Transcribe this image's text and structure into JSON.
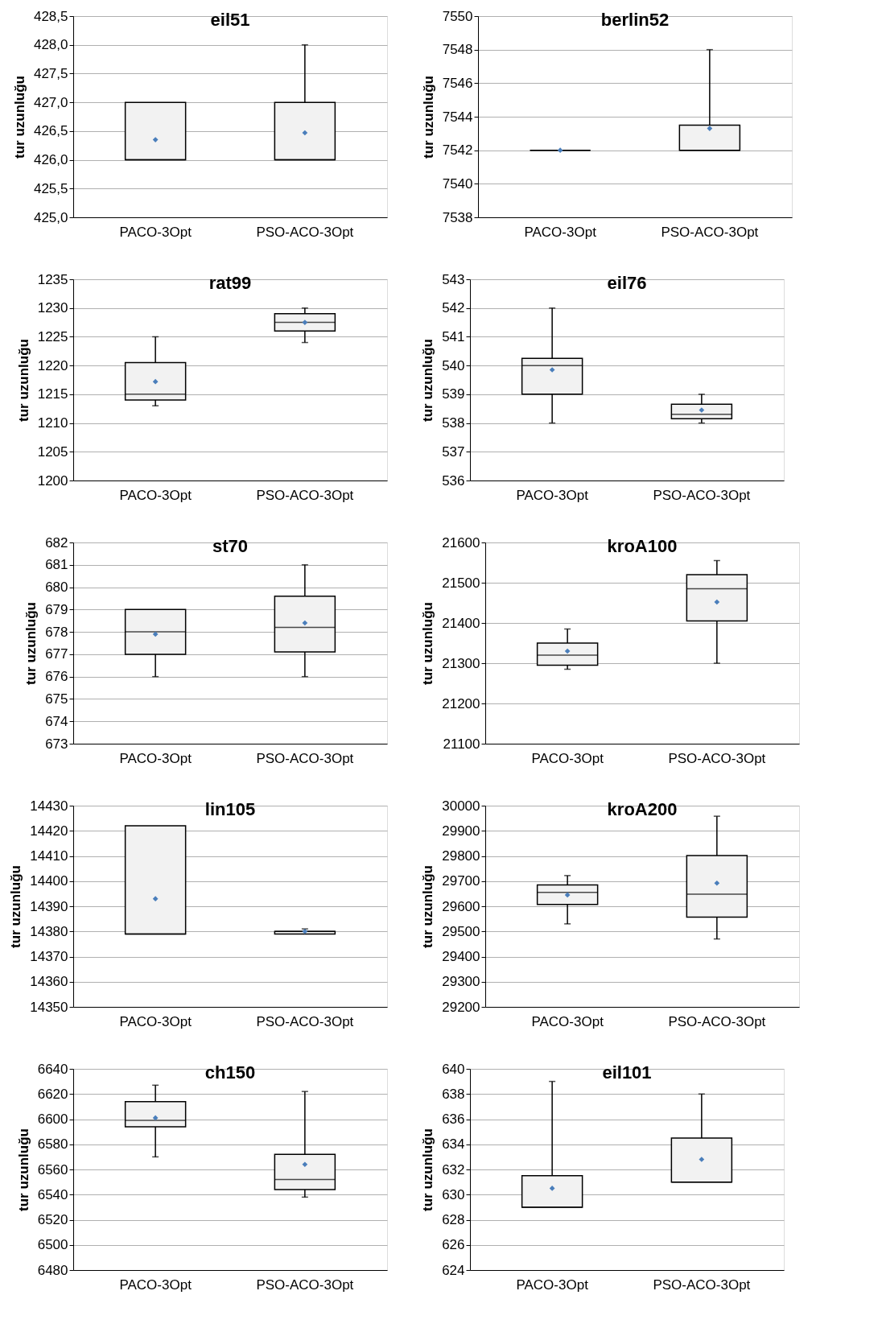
{
  "chart_data": [
    {
      "type": "box",
      "title": "eil51",
      "ylabel": "tur uzunluğu",
      "categories": [
        "PACO-3Opt",
        "PSO-ACO-3Opt"
      ],
      "grid": "y",
      "marker": "diamond",
      "boxes": [
        {
          "low": 426,
          "q1": 426,
          "median": 426,
          "q3": 427,
          "high": 427,
          "mean": 426.35
        },
        {
          "low": 426,
          "q1": 426,
          "median": 426,
          "q3": 427,
          "high": 428,
          "mean": 426.47
        }
      ],
      "ylim": [
        425,
        428.5
      ],
      "yticks": [
        {
          "value": 425,
          "label": "425,0"
        },
        {
          "value": 425.5,
          "label": "425,5"
        },
        {
          "value": 426,
          "label": "426,0"
        },
        {
          "value": 426.5,
          "label": "426,5"
        },
        {
          "value": 427,
          "label": "427,0"
        },
        {
          "value": 427.5,
          "label": "427,5"
        },
        {
          "value": 428,
          "label": "428,0"
        },
        {
          "value": 428.5,
          "label": "428,5"
        }
      ]
    },
    {
      "type": "box",
      "title": "berlin52",
      "ylabel": "tur uzunluğu",
      "categories": [
        "PACO-3Opt",
        "PSO-ACO-3Opt"
      ],
      "grid": "y",
      "marker": "diamond",
      "boxes": [
        {
          "low": 7542,
          "q1": 7542,
          "median": 7542,
          "q3": 7542,
          "high": 7542,
          "mean": 7542
        },
        {
          "low": 7542,
          "q1": 7542,
          "median": 7542,
          "q3": 7543.5,
          "high": 7548,
          "mean": 7543.3
        }
      ],
      "ylim": [
        7538,
        7550
      ],
      "yticks": [
        7538,
        7540,
        7542,
        7544,
        7546,
        7548,
        7550
      ]
    },
    {
      "type": "box",
      "title": "rat99",
      "ylabel": "tur uzunluğu",
      "categories": [
        "PACO-3Opt",
        "PSO-ACO-3Opt"
      ],
      "grid": "y",
      "marker": "diamond",
      "boxes": [
        {
          "low": 1213,
          "q1": 1214,
          "median": 1215,
          "q3": 1220.5,
          "high": 1225,
          "mean": 1217.2
        },
        {
          "low": 1224,
          "q1": 1226,
          "median": 1227.5,
          "q3": 1229,
          "high": 1230,
          "mean": 1227.5
        }
      ],
      "ylim": [
        1200,
        1235
      ],
      "yticks": [
        1200,
        1205,
        1210,
        1215,
        1220,
        1225,
        1230,
        1235
      ]
    },
    {
      "type": "box",
      "title": "eil76",
      "ylabel": "tur uzunluğu",
      "categories": [
        "PACO-3Opt",
        "PSO-ACO-3Opt"
      ],
      "grid": "y",
      "marker": "diamond",
      "boxes": [
        {
          "low": 538,
          "q1": 539,
          "median": 540,
          "q3": 540.25,
          "high": 542,
          "mean": 539.85
        },
        {
          "low": 538,
          "q1": 538.15,
          "median": 538.3,
          "q3": 538.65,
          "high": 539,
          "mean": 538.45
        }
      ],
      "ylim": [
        536,
        543
      ],
      "yticks": [
        536,
        537,
        538,
        539,
        540,
        541,
        542,
        543
      ]
    },
    {
      "type": "box",
      "title": "st70",
      "ylabel": "tur uzunluğu",
      "categories": [
        "PACO-3Opt",
        "PSO-ACO-3Opt"
      ],
      "grid": "y",
      "marker": "diamond",
      "boxes": [
        {
          "low": 676,
          "q1": 677,
          "median": 678,
          "q3": 679,
          "high": 679,
          "mean": 677.9
        },
        {
          "low": 676,
          "q1": 677.1,
          "median": 678.2,
          "q3": 679.6,
          "high": 681,
          "mean": 678.4
        }
      ],
      "ylim": [
        673,
        682
      ],
      "yticks": [
        673,
        674,
        675,
        676,
        677,
        678,
        679,
        680,
        681,
        682
      ]
    },
    {
      "type": "box",
      "title": "kroA100",
      "ylabel": "tur uzunluğu",
      "categories": [
        "PACO-3Opt",
        "PSO-ACO-3Opt"
      ],
      "grid": "y",
      "marker": "diamond",
      "boxes": [
        {
          "low": 21285,
          "q1": 21295,
          "median": 21320,
          "q3": 21350,
          "high": 21385,
          "mean": 21330
        },
        {
          "low": 21300,
          "q1": 21405,
          "median": 21485,
          "q3": 21520,
          "high": 21555,
          "mean": 21452
        }
      ],
      "ylim": [
        21100,
        21600
      ],
      "yticks": [
        21100,
        21200,
        21300,
        21400,
        21500,
        21600
      ]
    },
    {
      "type": "box",
      "title": "lin105",
      "ylabel": "tur uzunluğu",
      "categories": [
        "PACO-3Opt",
        "PSO-ACO-3Opt"
      ],
      "grid": "y",
      "marker": "diamond",
      "boxes": [
        {
          "low": 14379,
          "q1": 14379,
          "median": 14379,
          "q3": 14422,
          "high": 14422,
          "mean": 14393
        },
        {
          "low": 14379,
          "q1": 14379,
          "median": 14380,
          "q3": 14380,
          "high": 14381,
          "mean": 14380
        }
      ],
      "ylim": [
        14350,
        14430
      ],
      "yticks": [
        14350,
        14360,
        14370,
        14380,
        14390,
        14400,
        14410,
        14420,
        14430
      ]
    },
    {
      "type": "box",
      "title": "kroA200",
      "ylabel": "tur uzunluğu",
      "categories": [
        "PACO-3Opt",
        "PSO-ACO-3Opt"
      ],
      "grid": "y",
      "marker": "diamond",
      "boxes": [
        {
          "low": 29530,
          "q1": 29607,
          "median": 29655,
          "q3": 29685,
          "high": 29722,
          "mean": 29645
        },
        {
          "low": 29470,
          "q1": 29557,
          "median": 29648,
          "q3": 29802,
          "high": 29958,
          "mean": 29692
        }
      ],
      "ylim": [
        29200,
        30000
      ],
      "yticks": [
        29200,
        29300,
        29400,
        29500,
        29600,
        29700,
        29800,
        29900,
        30000
      ]
    },
    {
      "type": "box",
      "title": "ch150",
      "ylabel": "tur uzunluğu",
      "categories": [
        "PACO-3Opt",
        "PSO-ACO-3Opt"
      ],
      "grid": "y",
      "marker": "diamond",
      "boxes": [
        {
          "low": 6570,
          "q1": 6594,
          "median": 6599,
          "q3": 6614,
          "high": 6627,
          "mean": 6601
        },
        {
          "low": 6538,
          "q1": 6544,
          "median": 6552,
          "q3": 6572,
          "high": 6622,
          "mean": 6564
        }
      ],
      "ylim": [
        6480,
        6640
      ],
      "yticks": [
        6480,
        6500,
        6520,
        6540,
        6560,
        6580,
        6600,
        6620,
        6640
      ]
    },
    {
      "type": "box",
      "title": "eil101",
      "ylabel": "tur uzunluğu",
      "categories": [
        "PACO-3Opt",
        "PSO-ACO-3Opt"
      ],
      "grid": "y",
      "marker": "diamond",
      "boxes": [
        {
          "low": 629,
          "q1": 629,
          "median": 629,
          "q3": 631.5,
          "high": 639,
          "mean": 630.5
        },
        {
          "low": 631,
          "q1": 631,
          "median": 631,
          "q3": 634.5,
          "high": 638,
          "mean": 632.8
        }
      ],
      "ylim": [
        624,
        640
      ],
      "yticks": [
        624,
        626,
        628,
        630,
        632,
        634,
        636,
        638,
        640
      ]
    }
  ]
}
